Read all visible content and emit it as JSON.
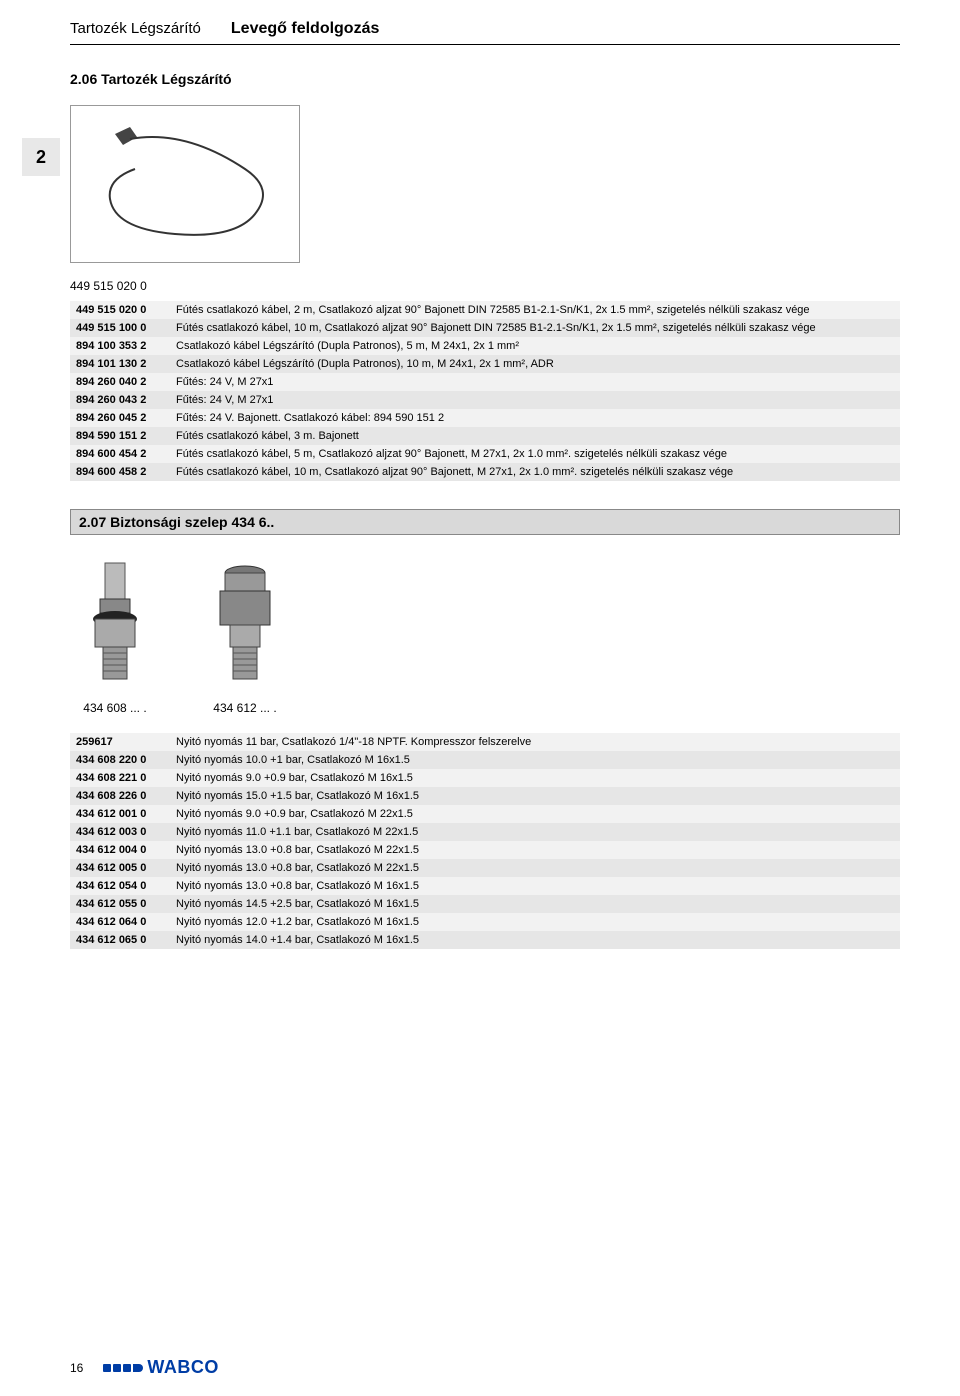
{
  "header": {
    "left": "Tartozék Légszárító",
    "right": "Levegő feldolgozás"
  },
  "side_tab": "2",
  "section_a": {
    "title": "2.06 Tartozék Légszárító",
    "heading_code": "449 515 020 0",
    "rows": [
      {
        "code": "449 515 020 0",
        "desc": "Fútés csatlakozó kábel,  2 m, Csatlakozó aljzat 90° Bajonett DIN 72585 B1-2.1-Sn/K1, 2x 1.5 mm², szigetelés nélküli szakasz vége"
      },
      {
        "code": "449 515 100 0",
        "desc": "Fútés csatlakozó kábel, 10 m, Csatlakozó aljzat 90° Bajonett DIN 72585 B1-2.1-Sn/K1, 2x 1.5 mm², szigetelés nélküli szakasz vége"
      },
      {
        "code": "894 100 353 2",
        "desc": "Csatlakozó kábel Légszárító (Dupla Patronos), 5 m, M 24x1, 2x 1 mm²"
      },
      {
        "code": "894 101 130 2",
        "desc": "Csatlakozó kábel Légszárító (Dupla Patronos), 10 m, M 24x1, 2x 1 mm², ADR"
      },
      {
        "code": "894 260 040 2",
        "desc": "Fűtés: 24 V, M 27x1"
      },
      {
        "code": "894 260 043 2",
        "desc": "Fűtés: 24 V, M 27x1"
      },
      {
        "code": "894 260 045 2",
        "desc": "Fűtés: 24 V. Bajonett. Csatlakozó kábel: 894 590 151 2"
      },
      {
        "code": "894 590 151 2",
        "desc": "Fútés csatlakozó kábel, 3 m. Bajonett"
      },
      {
        "code": "894 600 454 2",
        "desc": "Fútés csatlakozó kábel, 5 m, Csatlakozó aljzat 90° Bajonett, M 27x1, 2x 1.0 mm². szigetelés nélküli szakasz vége"
      },
      {
        "code": "894 600 458 2",
        "desc": "Fútés csatlakozó kábel, 10 m, Csatlakozó aljzat 90° Bajonett, M 27x1, 2x 1.0 mm². szigetelés nélküli szakasz vége"
      }
    ]
  },
  "section_b": {
    "title": "2.07 Biztonsági szelep 434 6..",
    "captions": [
      "434 608 ... .",
      "434 612 ... ."
    ],
    "rows": [
      {
        "code": "259617",
        "desc": "Nyitó nyomás 11 bar, Csatlakozó 1/4\"-18 NPTF. Kompresszor felszerelve"
      },
      {
        "code": "434 608 220 0",
        "desc": "Nyitó nyomás 10.0 +1 bar, Csatlakozó M 16x1.5"
      },
      {
        "code": "434 608 221 0",
        "desc": "Nyitó nyomás 9.0 +0.9 bar, Csatlakozó M 16x1.5"
      },
      {
        "code": "434 608 226 0",
        "desc": "Nyitó nyomás 15.0 +1.5 bar, Csatlakozó M 16x1.5"
      },
      {
        "code": "434 612 001 0",
        "desc": "Nyitó nyomás 9.0 +0.9 bar, Csatlakozó M 22x1.5"
      },
      {
        "code": "434 612 003 0",
        "desc": "Nyitó nyomás 11.0 +1.1 bar, Csatlakozó M 22x1.5"
      },
      {
        "code": "434 612 004 0",
        "desc": "Nyitó nyomás 13.0 +0.8 bar, Csatlakozó M 22x1.5"
      },
      {
        "code": "434 612 005 0",
        "desc": "Nyitó nyomás 13.0 +0.8 bar, Csatlakozó M 22x1.5"
      },
      {
        "code": "434 612 054 0",
        "desc": "Nyitó nyomás 13.0 +0.8 bar, Csatlakozó M 16x1.5"
      },
      {
        "code": "434 612 055 0",
        "desc": "Nyitó nyomás 14.5 +2.5 bar, Csatlakozó M 16x1.5"
      },
      {
        "code": "434 612 064 0",
        "desc": "Nyitó nyomás 12.0 +1.2 bar, Csatlakozó M 16x1.5"
      },
      {
        "code": "434 612 065 0",
        "desc": "Nyitó nyomás 14.0 +1.4 bar, Csatlakozó M 16x1.5"
      }
    ]
  },
  "footer": {
    "page": "16",
    "brand": "WABCO"
  },
  "colors": {
    "row_alt_light": "#f2f2f2",
    "row_alt_dark": "#e6e6e6",
    "brand_blue": "#003da5",
    "border_gray": "#999999",
    "title_bar_bg": "#d9d9d9"
  }
}
